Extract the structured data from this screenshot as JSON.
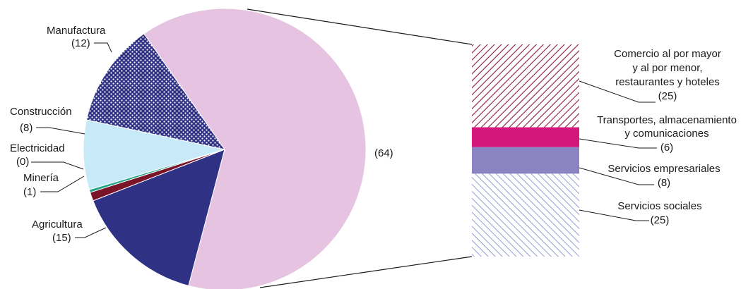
{
  "chart_data": {
    "type": "pie",
    "title": "",
    "pie": {
      "slices": [
        {
          "label": "Agricultura",
          "value_label": "(15)",
          "value": 15,
          "color": "#2e3184",
          "pattern": "solid"
        },
        {
          "label": "Minería",
          "value_label": "(1)",
          "value": 1,
          "color": "#7a1428",
          "pattern": "solid"
        },
        {
          "label": "Electricidad",
          "value_label": "(0)",
          "value": 0,
          "color": "#1fa184",
          "pattern": "solid"
        },
        {
          "label": "Construcción",
          "value_label": "(8)",
          "value": 8,
          "color": "#c8eaf8",
          "pattern": "solid"
        },
        {
          "label": "Manufactura",
          "value_label": "(12)",
          "value": 12,
          "color": "#2e3184",
          "pattern": "dots"
        },
        {
          "label": "",
          "value_label": "(64)",
          "value": 64,
          "color": "#e6c3e0",
          "pattern": "solid"
        }
      ]
    },
    "breakdown": {
      "parent_label": "(64)",
      "segments": [
        {
          "label_lines": [
            "Comercio al por mayor",
            "y al por menor,",
            "restaurantes y hoteles"
          ],
          "value_label": "(25)",
          "value": 25,
          "color": "#8b1a3a",
          "pattern": "hatch"
        },
        {
          "label_lines": [
            "Transportes, almacenamiento",
            "y comunicaciones"
          ],
          "value_label": "(6)",
          "value": 6,
          "color": "#d4177a",
          "pattern": "solid"
        },
        {
          "label_lines": [
            "Servicios empresariales"
          ],
          "value_label": "(8)",
          "value": 8,
          "color": "#8a85c2",
          "pattern": "solid"
        },
        {
          "label_lines": [
            "Servicios sociales"
          ],
          "value_label": "(25)",
          "value": 25,
          "color": "#7b86c8",
          "pattern": "hatch"
        }
      ]
    }
  }
}
